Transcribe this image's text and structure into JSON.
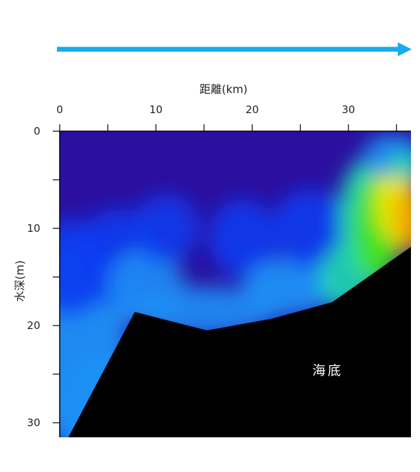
{
  "chart_data": {
    "type": "heatmap",
    "title": "",
    "xlabel": "距離(km)",
    "ylabel": "水深(m)",
    "x_axis_position": "top",
    "xlim": [
      0,
      36.5
    ],
    "ylim": [
      0,
      31.5
    ],
    "y_inverted": true,
    "x_ticks": [
      0,
      10,
      20,
      30
    ],
    "x_tick_labels": [
      "0",
      "10",
      "20",
      "30"
    ],
    "x_minor_ticks": [
      5,
      15,
      25,
      35
    ],
    "y_ticks": [
      0,
      10,
      20,
      30
    ],
    "y_tick_labels": [
      "0",
      "10",
      "20",
      "30"
    ],
    "y_minor_ticks": [
      5,
      15,
      25
    ],
    "grid": false,
    "colormap": [
      "#2a0fa0",
      "#0a3cf0",
      "#1f90f5",
      "#20d8b0",
      "#40e020",
      "#e8e800",
      "#f0a800"
    ],
    "seabed": {
      "color": "#000000",
      "label": "海底",
      "profile": [
        {
          "x": 0.9,
          "depth": 31.5
        },
        {
          "x": 7.8,
          "depth": 18.6
        },
        {
          "x": 15.3,
          "depth": 20.5
        },
        {
          "x": 22.0,
          "depth": 19.3
        },
        {
          "x": 28.3,
          "depth": 17.6
        },
        {
          "x": 36.5,
          "depth": 11.9
        }
      ]
    },
    "direction_arrow": {
      "color": "#1aaaee",
      "x_start": 0,
      "x_end": 36.0
    }
  }
}
